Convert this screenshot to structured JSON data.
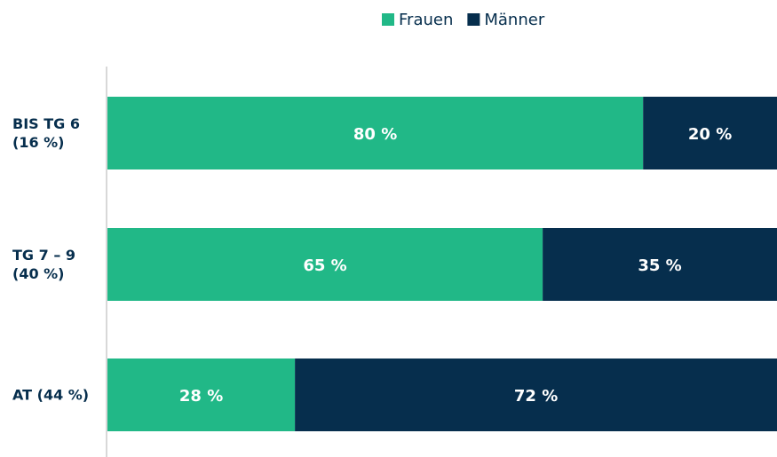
{
  "chart_data": {
    "type": "stacked-bar-horizontal",
    "categories": [
      "BIS TG 6 (16 %)",
      "TG 7 – 9 (40 %)",
      "AT (44 %)"
    ],
    "series": [
      {
        "name": "Frauen",
        "color": "#21b887",
        "values": [
          80,
          65,
          28
        ],
        "value_labels": [
          "80 %",
          "65 %",
          "28 %"
        ]
      },
      {
        "name": "Männer",
        "color": "#062e4d",
        "values": [
          20,
          35,
          72
        ],
        "value_labels": [
          "20 %",
          "35 %",
          "72 %"
        ]
      }
    ],
    "xlim": [
      0,
      100
    ],
    "legend": "top"
  }
}
